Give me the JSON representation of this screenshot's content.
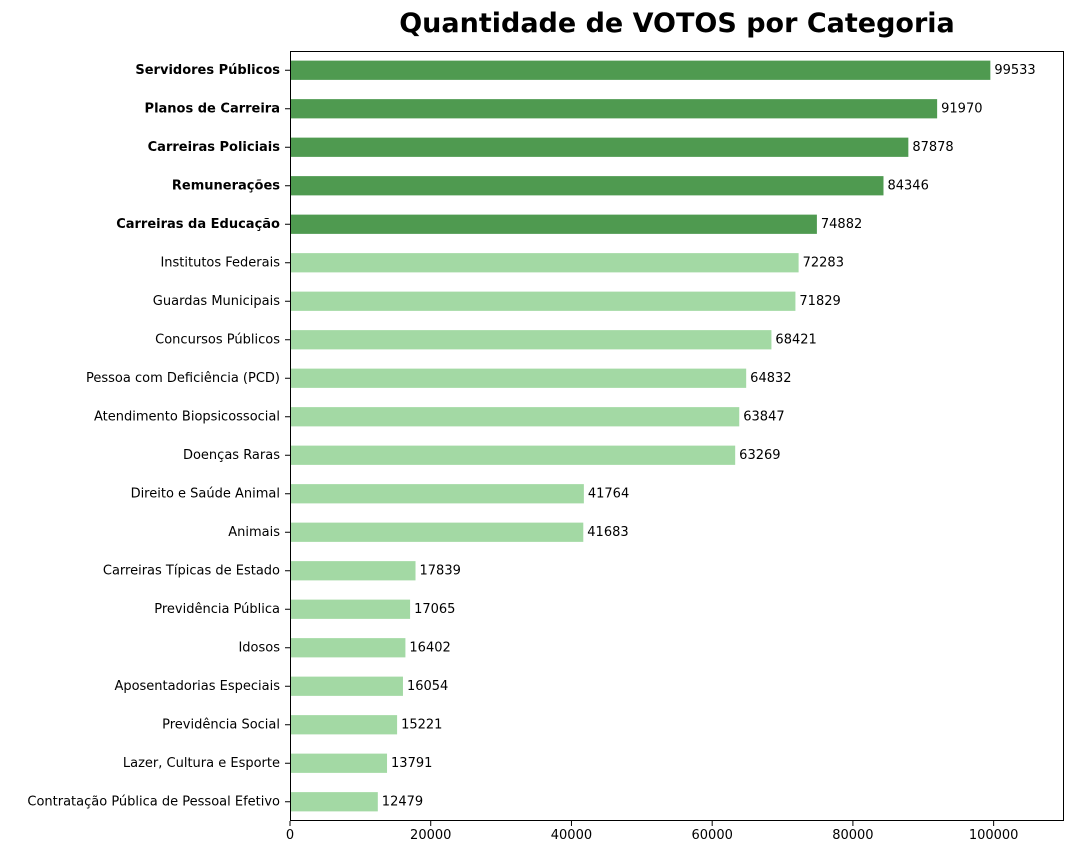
{
  "chart_data": {
    "type": "bar",
    "orientation": "horizontal",
    "title": "Quantidade de VOTOS por Categoria",
    "xlabel": "",
    "ylabel": "",
    "xlim": [
      0,
      110000
    ],
    "x_ticks": [
      0,
      20000,
      40000,
      60000,
      80000,
      100000
    ],
    "grid": false,
    "legend": "none",
    "colors": {
      "highlight": "#4f9a50",
      "normal": "#a3d9a4"
    },
    "categories": [
      "Servidores Públicos",
      "Planos de Carreira",
      "Carreiras Policiais",
      "Remunerações",
      "Carreiras da Educação",
      "Institutos Federais",
      "Guardas Municipais",
      "Concursos Públicos",
      "Pessoa com Deficiência (PCD)",
      "Atendimento Biopsicossocial",
      "Doenças Raras",
      "Direito e Saúde Animal",
      "Animais",
      "Carreiras Típicas de Estado",
      "Previdência Pública",
      "Idosos",
      "Aposentadorias Especiais",
      "Previdência Social",
      "Lazer, Cultura e Esporte",
      "Contratação Pública de Pessoal Efetivo"
    ],
    "values": [
      99533,
      91970,
      87878,
      84346,
      74882,
      72283,
      71829,
      68421,
      64832,
      63847,
      63269,
      41764,
      41683,
      17839,
      17065,
      16402,
      16054,
      15221,
      13791,
      12479
    ],
    "highlighted": [
      true,
      true,
      true,
      true,
      true,
      false,
      false,
      false,
      false,
      false,
      false,
      false,
      false,
      false,
      false,
      false,
      false,
      false,
      false,
      false
    ]
  }
}
